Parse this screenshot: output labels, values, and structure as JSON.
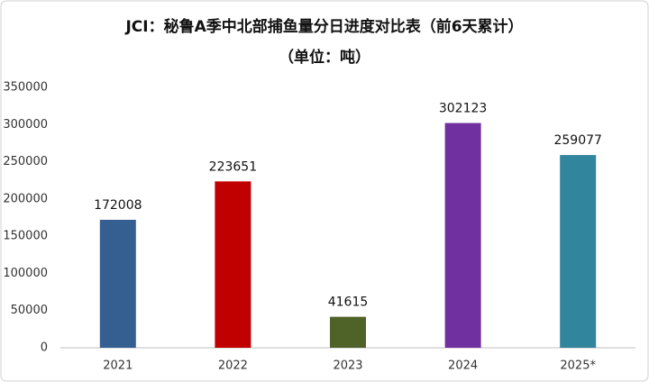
{
  "chart_data": {
    "type": "bar",
    "title": "JCI：秘鲁A季中北部捕鱼量分日进度对比表（前6天累计）",
    "subtitle": "（单位：吨）",
    "categories": [
      "2021",
      "2022",
      "2023",
      "2024",
      "2025*"
    ],
    "values": [
      172008,
      223651,
      41615,
      302123,
      259077
    ],
    "colors": [
      "#355f91",
      "#c00000",
      "#4f6228",
      "#7030a0",
      "#31859c"
    ],
    "ylim": [
      0,
      350000
    ],
    "yticks": [
      0,
      50000,
      100000,
      150000,
      200000,
      250000,
      300000,
      350000
    ],
    "grid": false
  }
}
